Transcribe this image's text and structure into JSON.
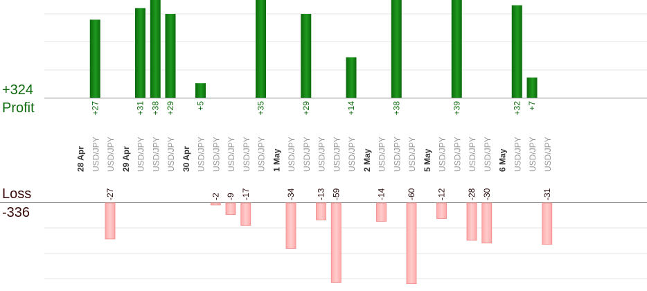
{
  "summary": {
    "profit_total": "+324",
    "profit_label": "Profit",
    "loss_label": "Loss",
    "loss_total": "-336"
  },
  "colors": {
    "profit_bar": "#0b6a0b",
    "profit_bar_light": "#1f9a1f",
    "loss_bar": "#ffaaaa",
    "loss_bar_border": "#ee8888",
    "profit_text": "#0b6a0b",
    "loss_text": "#2a0a0a",
    "date_text": "#333333",
    "pair_text": "#999999",
    "grid": "#e6e6e6",
    "axis": "#888888"
  },
  "chart_data": {
    "type": "bar",
    "pair": "USD/JPY",
    "dates": [
      "28 Apr",
      "29 Apr",
      "30 Apr",
      "1 May",
      "2 May",
      "5 May",
      "6 May"
    ],
    "trades": [
      {
        "date": "28 Apr",
        "value": 27
      },
      {
        "date": "28 Apr",
        "value": -27
      },
      {
        "date": "29 Apr",
        "value": 31
      },
      {
        "date": "29 Apr",
        "value": 38
      },
      {
        "date": "29 Apr",
        "value": 29
      },
      {
        "date": "30 Apr",
        "value": 5
      },
      {
        "date": "30 Apr",
        "value": -2
      },
      {
        "date": "30 Apr",
        "value": -9
      },
      {
        "date": "30 Apr",
        "value": -17
      },
      {
        "date": "30 Apr",
        "value": 35
      },
      {
        "date": "1 May",
        "value": -34
      },
      {
        "date": "1 May",
        "value": 29
      },
      {
        "date": "1 May",
        "value": -13
      },
      {
        "date": "1 May",
        "value": -59
      },
      {
        "date": "1 May",
        "value": 14
      },
      {
        "date": "2 May",
        "value": -14
      },
      {
        "date": "2 May",
        "value": 38
      },
      {
        "date": "2 May",
        "value": -60
      },
      {
        "date": "5 May",
        "value": -12
      },
      {
        "date": "5 May",
        "value": 39
      },
      {
        "date": "5 May",
        "value": -28
      },
      {
        "date": "5 May",
        "value": -30
      },
      {
        "date": "6 May",
        "value": 32
      },
      {
        "date": "6 May",
        "value": 7
      },
      {
        "date": "6 May",
        "value": -31
      }
    ]
  }
}
